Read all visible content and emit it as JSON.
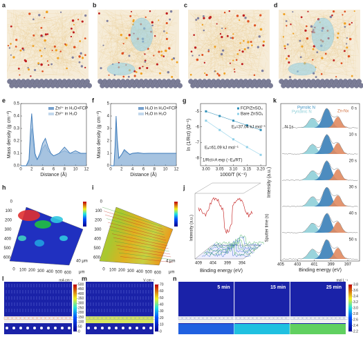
{
  "panel_labels": [
    "a",
    "b",
    "c",
    "d",
    "e",
    "f",
    "g",
    "h",
    "i",
    "j",
    "k",
    "l",
    "m",
    "n"
  ],
  "chart_data": [
    {
      "type": "line",
      "xlabel": "Distance (Å)",
      "ylabel": "Mass density (g cm⁻³)",
      "x": [
        0,
        1,
        1.5,
        1.8,
        2,
        2.2,
        2.6,
        3,
        3.5,
        4,
        4.5,
        5,
        5.5,
        6,
        7,
        8,
        9,
        10,
        11,
        12
      ],
      "series": [
        {
          "name": "Zn²⁺ in H₂O+FCP",
          "color": "#3a78b8",
          "values": [
            0,
            0,
            0.05,
            0.3,
            0.42,
            0.3,
            0.1,
            0.05,
            0.1,
            0.18,
            0.22,
            0.15,
            0.1,
            0.08,
            0.1,
            0.15,
            0.1,
            0.12,
            0.1,
            0.1
          ]
        },
        {
          "name": "Zn²⁺ in H₂O",
          "color": "#a8c8e6",
          "values": [
            0,
            0,
            0.03,
            0.2,
            0.3,
            0.22,
            0.08,
            0.05,
            0.08,
            0.14,
            0.17,
            0.12,
            0.1,
            0.08,
            0.1,
            0.12,
            0.1,
            0.1,
            0.1,
            0.1
          ]
        }
      ],
      "xlim": [
        0,
        12
      ],
      "xticks": [
        0,
        2,
        4,
        6,
        8,
        10,
        12
      ],
      "ylim": [
        0,
        0.5
      ],
      "yticks": [
        {
          "value": 0,
          "label": "0.0"
        },
        0.1,
        0.2,
        0.3,
        0.4,
        0.5
      ]
    },
    {
      "type": "line",
      "xlabel": "Distance (Å)",
      "ylabel": "Mass density (g cm⁻³)",
      "x": [
        0,
        0.6,
        0.8,
        1,
        1.2,
        1.5,
        2,
        2.5,
        3,
        3.5,
        4,
        5,
        6,
        7,
        8,
        9,
        10,
        11,
        12
      ],
      "series": [
        {
          "name": "H₂O in H₂O+FCP",
          "color": "#3a78b8",
          "values": [
            0,
            0,
            1.5,
            4,
            2.2,
            0.6,
            0.9,
            1.3,
            1.1,
            0.9,
            1,
            1.05,
            0.98,
            1,
            1,
            1,
            1,
            1,
            1
          ]
        },
        {
          "name": "H₂O in H₂O",
          "color": "#a8c8e6",
          "values": [
            0,
            0,
            1.2,
            3.2,
            1.9,
            0.6,
            0.9,
            1.2,
            1.05,
            0.95,
            1,
            1.02,
            1,
            1,
            1,
            1,
            1,
            1,
            1
          ]
        }
      ],
      "xlim": [
        0,
        12
      ],
      "xticks": [
        0,
        2,
        4,
        6,
        8,
        10,
        12
      ],
      "ylim": [
        0,
        5
      ],
      "yticks": [
        0,
        1,
        2,
        3,
        4,
        5
      ]
    },
    {
      "type": "scatter",
      "xlabel": "1000/T (K⁻¹)",
      "ylabel": "ln (1/Rct) (Ω⁻¹)",
      "x": [
        3,
        3.05,
        3.1,
        3.15,
        3.2
      ],
      "series": [
        {
          "name": "FCP/ZnSO₄",
          "color": "#2f8fb8",
          "values": [
            -5,
            -5.3,
            -5.6,
            -5.9,
            -6.2
          ]
        },
        {
          "name": "Bare ZnSO₄",
          "color": "#8fd0e8",
          "values": [
            -5.6,
            -6.2,
            -6.8,
            -7.3,
            -7.8
          ]
        }
      ],
      "annotations": [
        "Eₐ=37.04 kJ mol⁻¹",
        "Eₐ=61.09 kJ mol⁻¹",
        "1/Rct=A exp (−Eₐ/RT)"
      ],
      "xlim": [
        2.98,
        3.22
      ],
      "xticks": [
        {
          "value": 3,
          "label": "3.00"
        },
        3.05,
        {
          "value": 3.1,
          "label": "3.10"
        },
        3.15,
        {
          "value": 3.2,
          "label": "3.20"
        }
      ],
      "ylim": [
        -8.5,
        -4.5
      ],
      "yticks": [
        -8,
        -7,
        -6,
        -5
      ]
    },
    {
      "type": "xps",
      "xlabel": "Binding energy (eV)",
      "ylabel": "Intensity (a.u.)",
      "labels": [
        "Pyrrolic N",
        "Pyridinic N",
        "Zn-Nx",
        "N 1s"
      ],
      "times": [
        "0 s",
        "10 s",
        "20 s",
        "30 s",
        "40 s",
        "50 s"
      ],
      "xlim": [
        405,
        395.6
      ],
      "xticks": [
        405,
        403,
        401,
        399,
        397
      ]
    }
  ],
  "maps": {
    "h": {
      "xticks": [
        0,
        100,
        200,
        300,
        400,
        500,
        600
      ],
      "yticks": [
        0,
        100,
        200,
        300,
        400,
        500,
        600
      ],
      "unit": "μm",
      "depth": "40 μm"
    },
    "i": {
      "xticks": [
        0,
        100,
        200,
        300,
        400,
        500,
        600
      ],
      "yticks": [
        0,
        100,
        200,
        300,
        400,
        500,
        600
      ],
      "unit": "μm",
      "depth": "4 μm"
    },
    "j": {
      "xlabel": "Binding energy (eV)",
      "ylabel": "Intensity (a.u.)",
      "zlabel": "Sputter time (s)",
      "xticks": [
        409,
        404,
        399,
        394
      ]
    }
  },
  "fields": [
    {
      "unit": "mA cm⁻²",
      "lim": [
        0,
        500
      ],
      "ticks": [
        0,
        50,
        100,
        150,
        200,
        250,
        300,
        350,
        400,
        450,
        500
      ]
    },
    {
      "unit": "V cm⁻¹",
      "lim": [
        0,
        70
      ],
      "ticks": [
        0,
        10,
        20,
        30,
        40,
        50,
        60,
        70
      ]
    },
    {
      "unit": "mol L⁻¹",
      "lim": [
        2.2,
        3.8
      ],
      "ticks": [
        2.2,
        2.4,
        2.6,
        2.8,
        {
          "value": 3,
          "label": "3.0"
        },
        3.2,
        3.4,
        3.6,
        3.8
      ],
      "times": [
        "5 min",
        "15 min",
        "25 min"
      ]
    }
  ]
}
